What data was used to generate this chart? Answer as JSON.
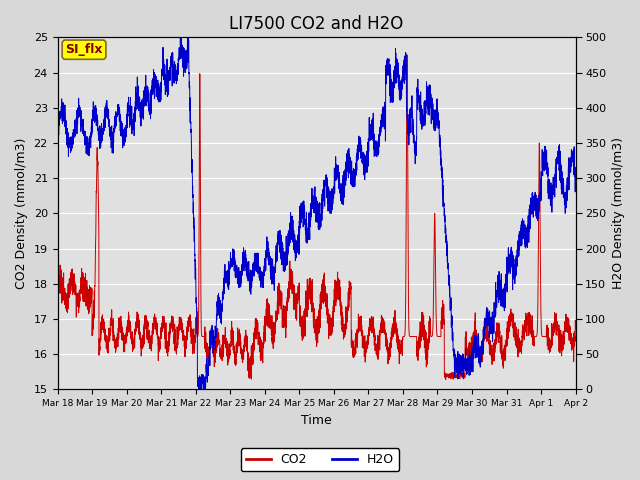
{
  "title": "LI7500 CO2 and H2O",
  "xlabel": "Time",
  "ylabel_left": "CO2 Density (mmol/m3)",
  "ylabel_right": "H2O Density (mmol/m3)",
  "ylim_left": [
    15.0,
    25.0
  ],
  "ylim_right": [
    0,
    500
  ],
  "yticks_left": [
    15.0,
    16.0,
    17.0,
    18.0,
    19.0,
    20.0,
    21.0,
    22.0,
    23.0,
    24.0,
    25.0
  ],
  "yticks_right": [
    0,
    50,
    100,
    150,
    200,
    250,
    300,
    350,
    400,
    450,
    500
  ],
  "xtick_labels": [
    "Mar 18",
    "Mar 19",
    "Mar 20",
    "Mar 21",
    "Mar 22",
    "Mar 23",
    "Mar 24",
    "Mar 25",
    "Mar 26",
    "Mar 27",
    "Mar 28",
    "Mar 29",
    "Mar 30",
    "Mar 31",
    "Apr 1",
    "Apr 2"
  ],
  "co2_color": "#CC0000",
  "h2o_color": "#0000CC",
  "bg_color": "#E0E0E0",
  "annotation_text": "SI_flx",
  "annotation_bg": "#FFFF00",
  "annotation_fg": "#8B0000",
  "legend_co2": "CO2",
  "legend_h2o": "H2O",
  "title_fontsize": 12,
  "axis_fontsize": 9,
  "tick_fontsize": 8
}
